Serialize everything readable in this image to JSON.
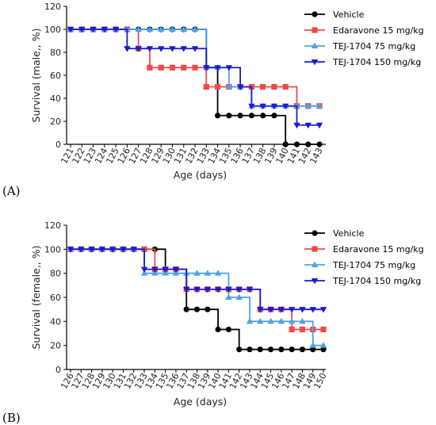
{
  "colors": {
    "Vehicle": "#000000",
    "Edaravone 15 mg/kg": "#ef4b4b",
    "TEJ-1704 75 mg/kg": "#4da3e8",
    "TEJ-1704 150 mg/kg": "#1a1ad0"
  },
  "markers": {
    "Vehicle": "circle",
    "Edaravone 15 mg/kg": "square",
    "TEJ-1704 75 mg/kg": "triangle-up",
    "TEJ-1704 150 mg/kg": "triangle-down"
  },
  "chart_data": [
    {
      "panel": "(A)",
      "type": "line",
      "xlabel": "Age (days)",
      "ylabel": "Survival (male,, %)",
      "ylim": [
        0,
        120
      ],
      "yticks": [
        0,
        20,
        40,
        60,
        80,
        100,
        120
      ],
      "categories": [
        "121",
        "122",
        "123",
        "124",
        "125",
        "126",
        "127",
        "128",
        "129",
        "130",
        "131",
        "132",
        "133",
        "134",
        "135",
        "136",
        "137",
        "138",
        "139",
        "140",
        "141",
        "142",
        "143"
      ],
      "legend_position": "right",
      "series": [
        {
          "name": "Vehicle",
          "values": [
            100,
            100,
            100,
            100,
            100,
            100,
            100,
            100,
            100,
            100,
            100,
            100,
            66.7,
            25,
            25,
            25,
            25,
            25,
            25,
            0,
            0,
            0,
            0
          ]
        },
        {
          "name": "Edaravone 15 mg/kg",
          "values": [
            100,
            100,
            100,
            100,
            100,
            100,
            83.3,
            66.7,
            66.7,
            66.7,
            66.7,
            66.7,
            50,
            50,
            50,
            50,
            50,
            50,
            50,
            50,
            33.3,
            33.3,
            33.3
          ]
        },
        {
          "name": "TEJ-1704 75 mg/kg",
          "values": [
            100,
            100,
            100,
            100,
            100,
            100,
            100,
            100,
            100,
            100,
            100,
            100,
            66.7,
            66.7,
            50,
            50,
            33.3,
            33.3,
            33.3,
            33.3,
            33.3,
            33.3,
            33.3
          ]
        },
        {
          "name": "TEJ-1704 150 mg/kg",
          "values": [
            100,
            100,
            100,
            100,
            100,
            83.3,
            83.3,
            83.3,
            83.3,
            83.3,
            83.3,
            83.3,
            66.7,
            66.7,
            66.7,
            50,
            33.3,
            33.3,
            33.3,
            33.3,
            16.7,
            16.7,
            16.7
          ]
        }
      ]
    },
    {
      "panel": "(B)",
      "type": "line",
      "xlabel": "Age (days)",
      "ylabel": "Survival (female,, %)",
      "ylim": [
        0,
        120
      ],
      "yticks": [
        0,
        20,
        40,
        60,
        80,
        100,
        120
      ],
      "categories": [
        "126",
        "127",
        "128",
        "129",
        "130",
        "131",
        "132",
        "133",
        "134",
        "135",
        "136",
        "137",
        "138",
        "139",
        "140",
        "141",
        "142",
        "143",
        "144",
        "145",
        "146",
        "147",
        "148",
        "149",
        "150"
      ],
      "legend_position": "right",
      "series": [
        {
          "name": "Vehicle",
          "values": [
            100,
            100,
            100,
            100,
            100,
            100,
            100,
            100,
            100,
            83.3,
            83.3,
            50,
            50,
            50,
            33.3,
            33.3,
            16.7,
            16.7,
            16.7,
            16.7,
            16.7,
            16.7,
            16.7,
            16.7,
            16.7
          ]
        },
        {
          "name": "Edaravone 15 mg/kg",
          "values": [
            100,
            100,
            100,
            100,
            100,
            100,
            100,
            100,
            83.3,
            83.3,
            83.3,
            66.7,
            66.7,
            66.7,
            66.7,
            66.7,
            66.7,
            66.7,
            50,
            50,
            50,
            33.3,
            33.3,
            33.3,
            33.3
          ]
        },
        {
          "name": "TEJ-1704 75 mg/kg",
          "values": [
            100,
            100,
            100,
            100,
            100,
            100,
            100,
            80,
            80,
            80,
            80,
            80,
            80,
            80,
            80,
            60,
            60,
            40,
            40,
            40,
            40,
            40,
            40,
            20,
            20
          ]
        },
        {
          "name": "TEJ-1704 150 mg/kg",
          "values": [
            100,
            100,
            100,
            100,
            100,
            100,
            100,
            83.3,
            83.3,
            83.3,
            83.3,
            66.7,
            66.7,
            66.7,
            66.7,
            66.7,
            66.7,
            66.7,
            50,
            50,
            50,
            50,
            50,
            50,
            50
          ]
        }
      ]
    }
  ]
}
